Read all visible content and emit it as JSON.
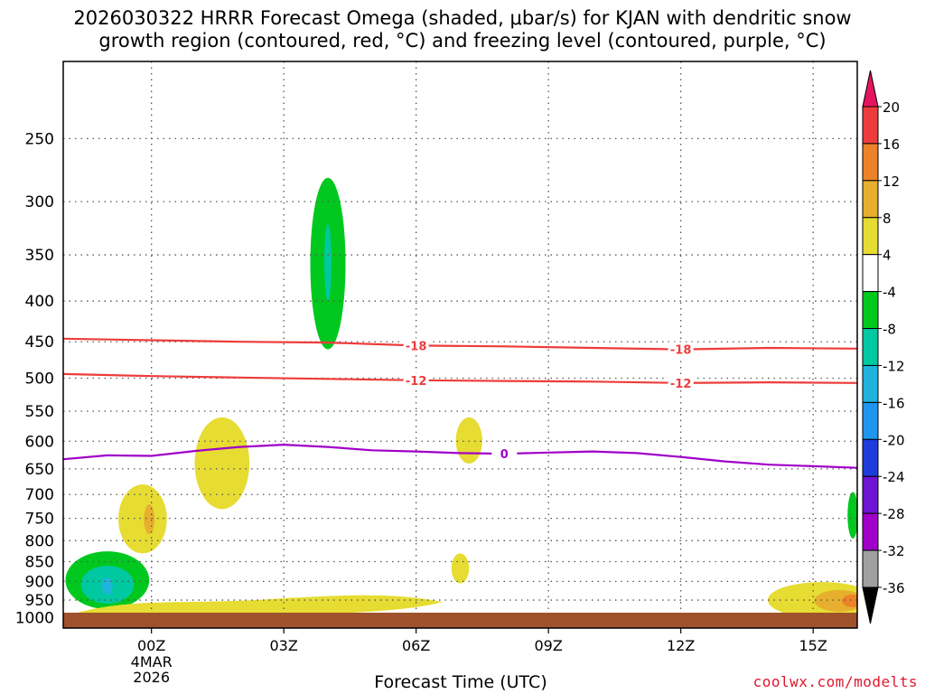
{
  "title_line1": "2026030322 HRRR Forecast Omega (shaded, μbar/s) for KJAN with dendritic snow",
  "title_line2": "growth region (contoured, red, °C) and freezing level (contoured, purple, °C)",
  "xlabel": "Forecast Time (UTC)",
  "credit": "coolwx.com/modelts",
  "chart_data": {
    "type": "time-height contour",
    "x_ticks": [
      {
        "t": 2,
        "label": "00Z",
        "sub": [
          "4MAR",
          "2026"
        ]
      },
      {
        "t": 5,
        "label": "03Z"
      },
      {
        "t": 8,
        "label": "06Z"
      },
      {
        "t": 11,
        "label": "09Z"
      },
      {
        "t": 14,
        "label": "12Z"
      },
      {
        "t": 17,
        "label": "15Z"
      }
    ],
    "xlim": [
      0,
      18
    ],
    "y_ticks": [
      250,
      300,
      350,
      400,
      450,
      500,
      550,
      600,
      650,
      700,
      750,
      800,
      850,
      900,
      950,
      1000
    ],
    "ylim_hPa": [
      200,
      1030
    ],
    "y_scale": "log-pressure",
    "grid": "dotted",
    "red_contours": [
      {
        "label": "-18",
        "points": [
          [
            0,
            446
          ],
          [
            2,
            448
          ],
          [
            4,
            450
          ],
          [
            6,
            451
          ],
          [
            8,
            455
          ],
          [
            10,
            456
          ],
          [
            12,
            458
          ],
          [
            14,
            460
          ],
          [
            16,
            458
          ],
          [
            18,
            459
          ]
        ],
        "label_at": [
          8,
          14
        ]
      },
      {
        "label": "-12",
        "points": [
          [
            0,
            494
          ],
          [
            2,
            497
          ],
          [
            4,
            499
          ],
          [
            6,
            501
          ],
          [
            8,
            503
          ],
          [
            10,
            504
          ],
          [
            12,
            505
          ],
          [
            14,
            507
          ],
          [
            16,
            506
          ],
          [
            18,
            507
          ]
        ],
        "label_at": [
          8,
          14
        ]
      }
    ],
    "purple_contours": [
      {
        "label": "0",
        "points": [
          [
            0,
            632
          ],
          [
            1,
            625
          ],
          [
            2,
            626
          ],
          [
            3,
            617
          ],
          [
            4,
            610
          ],
          [
            5,
            606
          ],
          [
            6,
            610
          ],
          [
            7,
            616
          ],
          [
            8,
            618
          ],
          [
            9,
            621
          ],
          [
            10,
            622
          ],
          [
            11,
            620
          ],
          [
            12,
            618
          ],
          [
            13,
            621
          ],
          [
            14,
            628
          ],
          [
            15,
            636
          ],
          [
            16,
            642
          ],
          [
            17,
            645
          ],
          [
            18,
            648
          ]
        ],
        "label_at": [
          10
        ]
      }
    ],
    "shaded_regions": [
      {
        "level": "-8 to -4",
        "color": "#00c81e",
        "center": [
          6,
          355
        ],
        "t_half": 0.4,
        "p_top": 280,
        "p_bot": 460
      },
      {
        "level": "-12 to -8",
        "color": "#00c8a0",
        "center": [
          6,
          360
        ],
        "t_half": 0.08,
        "p_top": 320,
        "p_bot": 400
      },
      {
        "level": "-8 to -4",
        "color": "#00c81e",
        "center": [
          1.0,
          918
        ],
        "t_half": 0.95,
        "p_top": 825,
        "p_bot": 975
      },
      {
        "level": "-12 to -8",
        "color": "#00c8a0",
        "center": [
          1.0,
          915
        ],
        "t_half": 0.6,
        "p_top": 860,
        "p_bot": 960
      },
      {
        "level": "-16 to -12",
        "color": "#1eb4dc",
        "center": [
          1.0,
          910
        ],
        "t_half": 0.12,
        "p_top": 890,
        "p_bot": 935
      },
      {
        "level": "4 to 8",
        "color": "#e6dc32",
        "center": [
          1.8,
          745
        ],
        "t_half": 0.55,
        "p_top": 680,
        "p_bot": 830
      },
      {
        "level": "8 to 12",
        "color": "#e6af2d",
        "center": [
          1.95,
          750
        ],
        "t_half": 0.12,
        "p_top": 720,
        "p_bot": 785
      },
      {
        "level": "4 to 8",
        "color": "#e6dc32",
        "center": [
          3.6,
          620
        ],
        "t_half": 0.62,
        "p_top": 560,
        "p_bot": 730
      },
      {
        "level": "4 to 8",
        "color": "#e6dc32",
        "center": [
          9.2,
          600
        ],
        "t_half": 0.3,
        "p_top": 560,
        "p_bot": 640
      },
      {
        "level": "4 to 8",
        "color": "#e6dc32",
        "center": [
          9.0,
          880
        ],
        "t_half": 0.2,
        "p_top": 830,
        "p_bot": 905
      },
      {
        "level": "-8 to -4",
        "color": "#00c81e",
        "center": [
          17.9,
          735
        ],
        "t_half": 0.12,
        "p_top": 695,
        "p_bot": 795
      }
    ],
    "colorbar": {
      "labels": [
        20,
        16,
        12,
        8,
        4,
        -4,
        -8,
        -12,
        -16,
        -20,
        -24,
        -28,
        -32,
        -36
      ],
      "colors": [
        "#e6145f",
        "#ee3c3c",
        "#ee8228",
        "#e6af2d",
        "#e6dc32",
        "#ffffff",
        "#00c81e",
        "#00c8a0",
        "#1eb4dc",
        "#1e96f0",
        "#1e3cdc",
        "#6e14d2",
        "#a000c8",
        "#a0a0a0",
        "#000000"
      ]
    }
  }
}
